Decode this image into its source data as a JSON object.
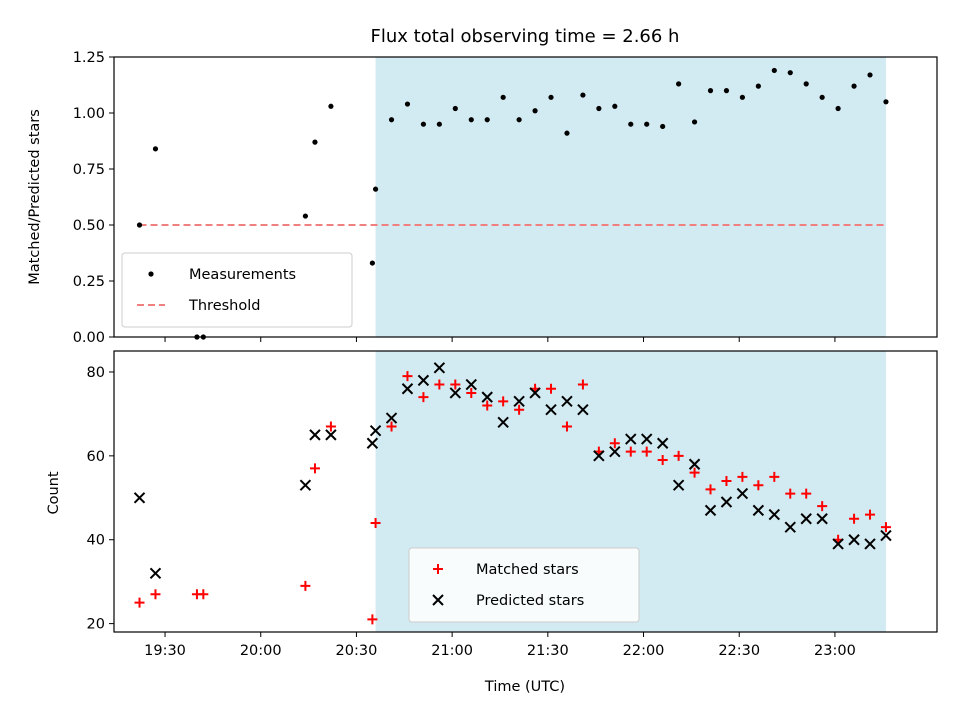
{
  "chart_data": [
    {
      "type": "scatter",
      "title": "Flux total observing time = 2.66 h",
      "xlabel": "",
      "ylabel": "Matched/Predicted stars",
      "ylim": [
        0,
        1.25
      ],
      "xlim": [
        "19:14",
        "23:32"
      ],
      "yticks": [
        "0.00",
        "0.25",
        "0.50",
        "0.75",
        "1.00",
        "1.25"
      ],
      "shaded_region": {
        "from": "20:36",
        "to": "23:16",
        "color": "#add8e6"
      },
      "threshold": {
        "name": "Threshold",
        "value": 0.5,
        "from": "19:22",
        "to": "23:16",
        "color": "#f08080"
      },
      "legend_position": "lower-left",
      "series": [
        {
          "name": "Measurements",
          "marker": "dot",
          "color": "#000000",
          "points": [
            [
              "19:22",
              0.5
            ],
            [
              "19:27",
              0.84
            ],
            [
              "19:40",
              0.0
            ],
            [
              "19:42",
              0.0
            ],
            [
              "20:14",
              0.54
            ],
            [
              "20:17",
              0.87
            ],
            [
              "20:22",
              1.03
            ],
            [
              "20:35",
              0.33
            ],
            [
              "20:36",
              0.66
            ],
            [
              "20:41",
              0.97
            ],
            [
              "20:46",
              1.04
            ],
            [
              "20:51",
              0.95
            ],
            [
              "20:56",
              0.95
            ],
            [
              "21:01",
              1.02
            ],
            [
              "21:06",
              0.97
            ],
            [
              "21:11",
              0.97
            ],
            [
              "21:16",
              1.07
            ],
            [
              "21:21",
              0.97
            ],
            [
              "21:26",
              1.01
            ],
            [
              "21:31",
              1.07
            ],
            [
              "21:36",
              0.91
            ],
            [
              "21:41",
              1.08
            ],
            [
              "21:46",
              1.02
            ],
            [
              "21:51",
              1.03
            ],
            [
              "21:56",
              0.95
            ],
            [
              "22:01",
              0.95
            ],
            [
              "22:06",
              0.94
            ],
            [
              "22:11",
              1.13
            ],
            [
              "22:16",
              0.96
            ],
            [
              "22:21",
              1.1
            ],
            [
              "22:26",
              1.1
            ],
            [
              "22:31",
              1.07
            ],
            [
              "22:36",
              1.12
            ],
            [
              "22:41",
              1.19
            ],
            [
              "22:46",
              1.18
            ],
            [
              "22:51",
              1.13
            ],
            [
              "22:56",
              1.07
            ],
            [
              "23:01",
              1.02
            ],
            [
              "23:06",
              1.12
            ],
            [
              "23:11",
              1.17
            ],
            [
              "23:16",
              1.05
            ]
          ]
        }
      ]
    },
    {
      "type": "scatter",
      "title": "",
      "xlabel": "Time (UTC)",
      "ylabel": "Count",
      "ylim": [
        18,
        85
      ],
      "xlim": [
        "19:14",
        "23:32"
      ],
      "yticks": [
        "20",
        "40",
        "60",
        "80"
      ],
      "xticks": [
        "19:30",
        "20:00",
        "20:30",
        "21:00",
        "21:30",
        "22:00",
        "22:30",
        "23:00"
      ],
      "shaded_region": {
        "from": "20:36",
        "to": "23:16",
        "color": "#add8e6"
      },
      "legend_position": "lower-center",
      "series": [
        {
          "name": "Matched stars",
          "marker": "plus",
          "color": "#ff0000",
          "points": [
            [
              "19:22",
              25
            ],
            [
              "19:27",
              27
            ],
            [
              "19:40",
              27
            ],
            [
              "19:42",
              27
            ],
            [
              "20:14",
              29
            ],
            [
              "20:17",
              57
            ],
            [
              "20:22",
              67
            ],
            [
              "20:35",
              21
            ],
            [
              "20:36",
              44
            ],
            [
              "20:41",
              67
            ],
            [
              "20:46",
              79
            ],
            [
              "20:51",
              74
            ],
            [
              "20:56",
              77
            ],
            [
              "21:01",
              77
            ],
            [
              "21:06",
              75
            ],
            [
              "21:11",
              72
            ],
            [
              "21:16",
              73
            ],
            [
              "21:21",
              71
            ],
            [
              "21:26",
              76
            ],
            [
              "21:31",
              76
            ],
            [
              "21:36",
              67
            ],
            [
              "21:41",
              77
            ],
            [
              "21:46",
              61
            ],
            [
              "21:51",
              63
            ],
            [
              "21:56",
              61
            ],
            [
              "22:01",
              61
            ],
            [
              "22:06",
              59
            ],
            [
              "22:11",
              60
            ],
            [
              "22:16",
              56
            ],
            [
              "22:21",
              52
            ],
            [
              "22:26",
              54
            ],
            [
              "22:31",
              55
            ],
            [
              "22:36",
              53
            ],
            [
              "22:41",
              55
            ],
            [
              "22:46",
              51
            ],
            [
              "22:51",
              51
            ],
            [
              "22:56",
              48
            ],
            [
              "23:01",
              40
            ],
            [
              "23:06",
              45
            ],
            [
              "23:11",
              46
            ],
            [
              "23:16",
              43
            ]
          ]
        },
        {
          "name": "Predicted stars",
          "marker": "x",
          "color": "#000000",
          "points": [
            [
              "19:22",
              50
            ],
            [
              "19:27",
              32
            ],
            [
              "20:14",
              53
            ],
            [
              "20:17",
              65
            ],
            [
              "20:22",
              65
            ],
            [
              "20:35",
              63
            ],
            [
              "20:36",
              66
            ],
            [
              "20:41",
              69
            ],
            [
              "20:46",
              76
            ],
            [
              "20:51",
              78
            ],
            [
              "20:56",
              81
            ],
            [
              "21:01",
              75
            ],
            [
              "21:06",
              77
            ],
            [
              "21:11",
              74
            ],
            [
              "21:16",
              68
            ],
            [
              "21:21",
              73
            ],
            [
              "21:26",
              75
            ],
            [
              "21:31",
              71
            ],
            [
              "21:36",
              73
            ],
            [
              "21:41",
              71
            ],
            [
              "21:46",
              60
            ],
            [
              "21:51",
              61
            ],
            [
              "21:56",
              64
            ],
            [
              "22:01",
              64
            ],
            [
              "22:06",
              63
            ],
            [
              "22:11",
              53
            ],
            [
              "22:16",
              58
            ],
            [
              "22:21",
              47
            ],
            [
              "22:26",
              49
            ],
            [
              "22:31",
              51
            ],
            [
              "22:36",
              47
            ],
            [
              "22:41",
              46
            ],
            [
              "22:46",
              43
            ],
            [
              "22:51",
              45
            ],
            [
              "22:56",
              45
            ],
            [
              "23:01",
              39
            ],
            [
              "23:06",
              40
            ],
            [
              "23:11",
              39
            ],
            [
              "23:16",
              41
            ]
          ]
        }
      ]
    }
  ]
}
